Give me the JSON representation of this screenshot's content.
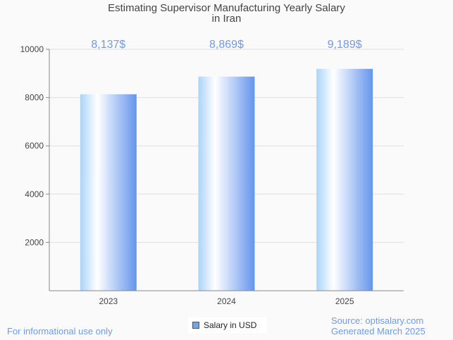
{
  "chart_data": {
    "type": "bar",
    "title": [
      "Estimating Supervisor Manufacturing Yearly Salary",
      "in Iran"
    ],
    "categories": [
      "2023",
      "2024",
      "2025"
    ],
    "values": [
      8137,
      8869,
      9189
    ],
    "data_labels": [
      "8,137$",
      "8,869$",
      "9,189$"
    ],
    "yticks": [
      2000,
      4000,
      6000,
      8000,
      10000
    ],
    "ylim": [
      0,
      10000
    ],
    "xlabel": "",
    "ylabel": "",
    "grid": true,
    "legend": {
      "label": "Salary in USD",
      "placement": "bottom-center"
    },
    "colors": {
      "bar_left": "#aad4fb",
      "bar_mid": "#ffffff",
      "bar_right": "#6495ed",
      "label": "#6f9ae8"
    }
  },
  "footer": {
    "left": "For informational use only",
    "source": "Source: optisalary.com",
    "generated": "Generated March 2025"
  }
}
